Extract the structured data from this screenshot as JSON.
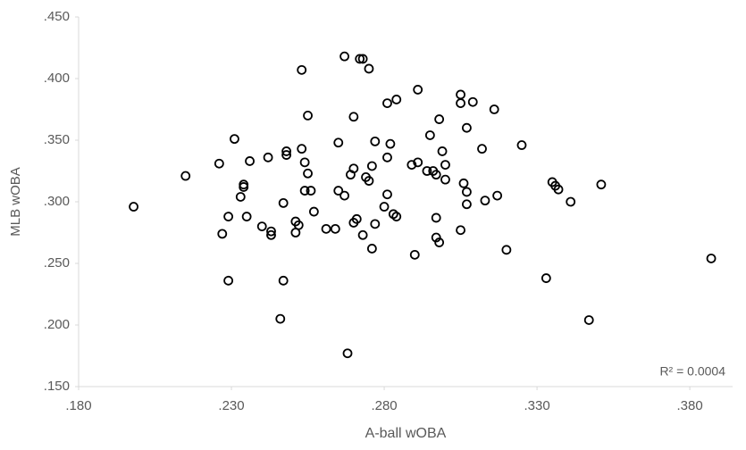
{
  "chart_data": {
    "type": "scatter",
    "x_label": "A-ball wOBA",
    "y_label": "MLB wOBA",
    "annotation": "R² = 0.0004",
    "color": "#000000",
    "x": [
      0.198,
      0.215,
      0.226,
      0.227,
      0.229,
      0.229,
      0.231,
      0.233,
      0.234,
      0.234,
      0.235,
      0.236,
      0.24,
      0.242,
      0.243,
      0.243,
      0.246,
      0.247,
      0.247,
      0.248,
      0.248,
      0.251,
      0.251,
      0.252,
      0.253,
      0.253,
      0.254,
      0.254,
      0.255,
      0.255,
      0.256,
      0.257,
      0.261,
      0.264,
      0.265,
      0.265,
      0.267,
      0.267,
      0.268,
      0.269,
      0.27,
      0.27,
      0.27,
      0.271,
      0.272,
      0.273,
      0.273,
      0.274,
      0.275,
      0.275,
      0.276,
      0.276,
      0.277,
      0.277,
      0.28,
      0.281,
      0.281,
      0.281,
      0.282,
      0.283,
      0.284,
      0.284,
      0.289,
      0.29,
      0.291,
      0.291,
      0.294,
      0.295,
      0.296,
      0.297,
      0.297,
      0.297,
      0.298,
      0.298,
      0.299,
      0.3,
      0.3,
      0.305,
      0.305,
      0.305,
      0.306,
      0.307,
      0.307,
      0.307,
      0.309,
      0.312,
      0.313,
      0.316,
      0.317,
      0.32,
      0.325,
      0.333,
      0.335,
      0.336,
      0.337,
      0.341,
      0.347,
      0.351,
      0.387
    ],
    "values": [
      0.296,
      0.321,
      0.331,
      0.274,
      0.288,
      0.236,
      0.351,
      0.304,
      0.314,
      0.312,
      0.288,
      0.333,
      0.28,
      0.336,
      0.276,
      0.273,
      0.205,
      0.299,
      0.236,
      0.341,
      0.338,
      0.284,
      0.275,
      0.281,
      0.343,
      0.407,
      0.332,
      0.309,
      0.37,
      0.323,
      0.309,
      0.292,
      0.278,
      0.278,
      0.348,
      0.309,
      0.418,
      0.305,
      0.177,
      0.322,
      0.327,
      0.369,
      0.283,
      0.286,
      0.416,
      0.273,
      0.416,
      0.32,
      0.317,
      0.408,
      0.262,
      0.329,
      0.349,
      0.282,
      0.296,
      0.336,
      0.306,
      0.38,
      0.347,
      0.29,
      0.383,
      0.288,
      0.33,
      0.257,
      0.332,
      0.391,
      0.325,
      0.354,
      0.325,
      0.287,
      0.271,
      0.322,
      0.267,
      0.367,
      0.341,
      0.318,
      0.33,
      0.387,
      0.38,
      0.277,
      0.315,
      0.308,
      0.298,
      0.36,
      0.381,
      0.343,
      0.301,
      0.375,
      0.305,
      0.261,
      0.346,
      0.238,
      0.316,
      0.313,
      0.31,
      0.3,
      0.204,
      0.314,
      0.254
    ],
    "xlim": [
      0.18,
      0.394
    ],
    "xticks": [
      {
        "value": 0.18,
        "label": ".180"
      },
      {
        "value": 0.23,
        "label": ".230"
      },
      {
        "value": 0.28,
        "label": ".280"
      },
      {
        "value": 0.33,
        "label": ".330"
      },
      {
        "value": 0.38,
        "label": ".380"
      }
    ],
    "ylim": [
      0.15,
      0.45
    ],
    "yticks": [
      {
        "value": 0.15,
        "label": ".150"
      },
      {
        "value": 0.2,
        "label": ".200"
      },
      {
        "value": 0.25,
        "label": ".250"
      },
      {
        "value": 0.3,
        "label": ".300"
      },
      {
        "value": 0.35,
        "label": ".350"
      },
      {
        "value": 0.4,
        "label": ".400"
      },
      {
        "value": 0.45,
        "label": ".450"
      }
    ]
  }
}
